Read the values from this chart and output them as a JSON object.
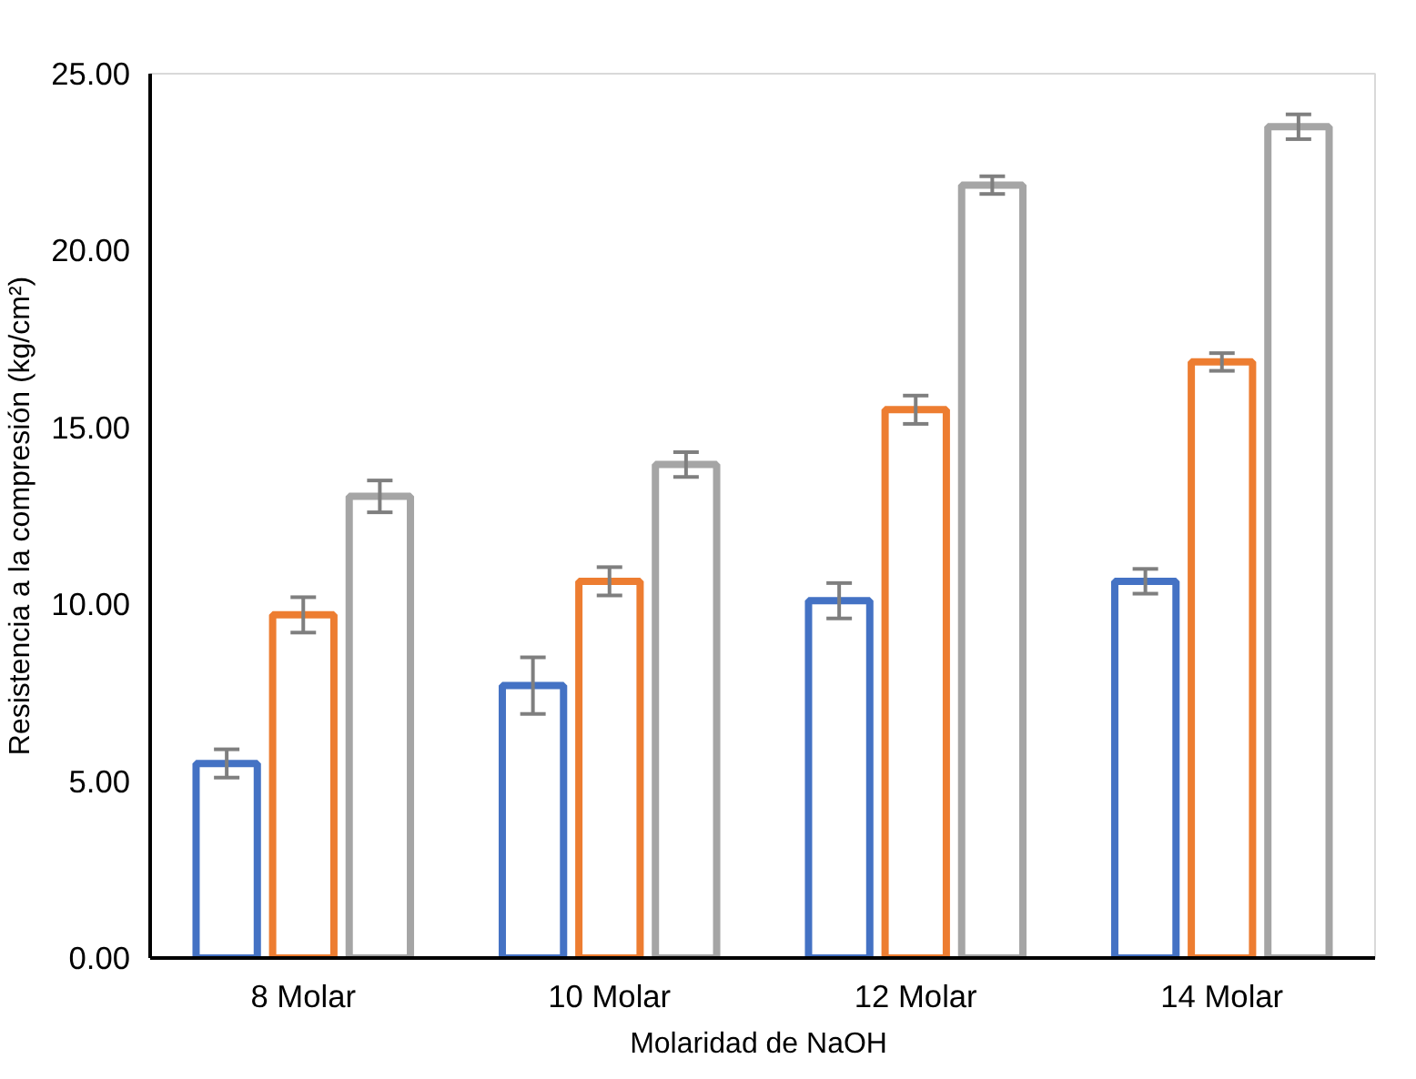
{
  "chart_data": {
    "type": "bar",
    "xlabel": "Molaridad  de NaOH",
    "ylabel": "Resistencia a la compresión (kg/cm²)",
    "categories": [
      "8 Molar",
      "10 Molar",
      "12 Molar",
      "14 Molar"
    ],
    "series": [
      {
        "color": "#4472c4",
        "values": [
          5.5,
          7.7,
          10.1,
          10.65
        ],
        "errors": [
          0.4,
          0.8,
          0.5,
          0.35
        ]
      },
      {
        "color": "#ed7d31",
        "values": [
          9.7,
          10.65,
          15.5,
          16.85
        ],
        "errors": [
          0.5,
          0.4,
          0.4,
          0.25
        ]
      },
      {
        "color": "#a5a5a5",
        "values": [
          13.05,
          13.95,
          21.85,
          23.5
        ],
        "errors": [
          0.45,
          0.35,
          0.25,
          0.35
        ]
      }
    ],
    "ylim": [
      0,
      25
    ],
    "yticks": [
      {
        "value": 0,
        "label": "0.00"
      },
      {
        "value": 5,
        "label": "5.00"
      },
      {
        "value": 10,
        "label": "10.00"
      },
      {
        "value": 15,
        "label": "15.00"
      },
      {
        "value": 20,
        "label": "20.00"
      },
      {
        "value": 25,
        "label": "25.00"
      }
    ],
    "grid": false
  }
}
